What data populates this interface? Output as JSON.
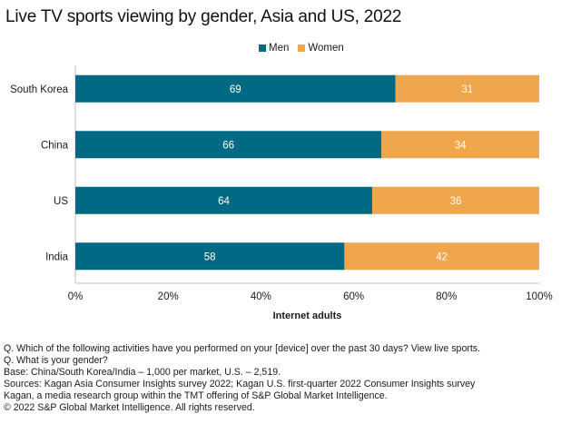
{
  "chart_data": {
    "type": "bar",
    "orientation": "horizontal",
    "stacked": true,
    "title": "Live TV sports viewing by gender, Asia and US, 2022",
    "categories": [
      "South Korea",
      "China",
      "US",
      "India"
    ],
    "series": [
      {
        "name": "Men",
        "color": "#006a85",
        "values": [
          69,
          66,
          64,
          58
        ]
      },
      {
        "name": "Women",
        "color": "#efa64c",
        "values": [
          31,
          34,
          36,
          42
        ]
      }
    ],
    "xlabel": "Internet adults",
    "ylabel": "",
    "xlim": [
      0,
      100
    ],
    "xticks": [
      "0%",
      "20%",
      "40%",
      "60%",
      "80%",
      "100%"
    ],
    "legend_position": "top-center",
    "grid": false
  },
  "legend": [
    {
      "label": "Men",
      "color": "#006a85"
    },
    {
      "label": "Women",
      "color": "#efa64c"
    }
  ],
  "notes": [
    "Q. Which of the following activities have you performed on your [device] over the past 30 days? View live sports.",
    "Q. What is your gender?",
    "Base: China/South Korea/India – 1,000 per market, U.S. – 2,519.",
    "Sources: Kagan Asia Consumer Insights survey 2022; Kagan U.S. first-quarter 2022 Consumer Insights survey",
    "Kagan, a media research group within the TMT offering of S&P Global Market Intelligence.",
    "© 2022 S&P Global Market Intelligence.  All rights reserved."
  ]
}
